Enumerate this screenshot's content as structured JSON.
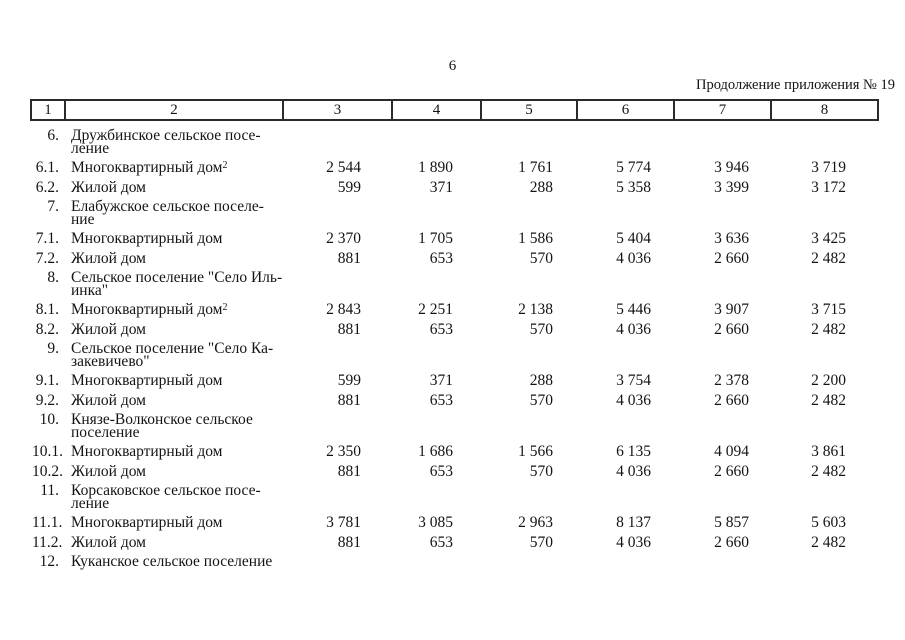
{
  "page": {
    "number": "6",
    "continuation_note": "Продолжение приложения № 19"
  },
  "table": {
    "header_cols": [
      "1",
      "2",
      "3",
      "4",
      "5",
      "6",
      "7",
      "8"
    ],
    "rows": [
      {
        "num": "6.",
        "label": "Дружбинское сельское посе-\nление",
        "values": []
      },
      {
        "num": "6.1.",
        "label": "Многоквартирный дом",
        "sup": "2",
        "values": [
          "2 544",
          "1 890",
          "1 761",
          "5 774",
          "3 946",
          "3 719"
        ]
      },
      {
        "num": "6.2.",
        "label": "Жилой дом",
        "values": [
          "599",
          "371",
          "288",
          "5 358",
          "3 399",
          "3 172"
        ]
      },
      {
        "num": "7.",
        "label": "Елабужское сельское поселе-\nние",
        "values": []
      },
      {
        "num": "7.1.",
        "label": "Многоквартирный дом",
        "values": [
          "2 370",
          "1 705",
          "1 586",
          "5 404",
          "3 636",
          "3 425"
        ]
      },
      {
        "num": "7.2.",
        "label": "Жилой дом",
        "values": [
          "881",
          "653",
          "570",
          "4 036",
          "2 660",
          "2 482"
        ]
      },
      {
        "num": "8.",
        "label": "Сельское поселение \"Село Иль-\nинка\"",
        "values": []
      },
      {
        "num": "8.1.",
        "label": "Многоквартирный дом",
        "sup": "2",
        "values": [
          "2 843",
          "2 251",
          "2 138",
          "5 446",
          "3 907",
          "3 715"
        ]
      },
      {
        "num": "8.2.",
        "label": "Жилой дом",
        "values": [
          "881",
          "653",
          "570",
          "4 036",
          "2 660",
          "2 482"
        ]
      },
      {
        "num": "9.",
        "label": "Сельское поселение \"Село Ка-\nзакевичево\"",
        "values": []
      },
      {
        "num": "9.1.",
        "label": "Многоквартирный дом",
        "values": [
          "599",
          "371",
          "288",
          "3 754",
          "2 378",
          "2 200"
        ]
      },
      {
        "num": "9.2.",
        "label": "Жилой дом",
        "values": [
          "881",
          "653",
          "570",
          "4 036",
          "2 660",
          "2 482"
        ]
      },
      {
        "num": "10.",
        "label": "Князе-Волконское сельское\nпоселение",
        "values": []
      },
      {
        "num": "10.1.",
        "label": "Многоквартирный дом",
        "values": [
          "2 350",
          "1 686",
          "1 566",
          "6 135",
          "4 094",
          "3 861"
        ]
      },
      {
        "num": "10.2.",
        "label": "Жилой дом",
        "values": [
          "881",
          "653",
          "570",
          "4 036",
          "2 660",
          "2 482"
        ]
      },
      {
        "num": "11.",
        "label": "Корсаковское сельское посе-\nление",
        "values": []
      },
      {
        "num": "11.1.",
        "label": "Многоквартирный дом",
        "values": [
          "3 781",
          "3 085",
          "2 963",
          "8 137",
          "5 857",
          "5 603"
        ]
      },
      {
        "num": "11.2.",
        "label": "Жилой дом",
        "values": [
          "881",
          "653",
          "570",
          "4 036",
          "2 660",
          "2 482"
        ]
      },
      {
        "num": "12.",
        "label": "Куканское сельское поселение",
        "values": []
      }
    ]
  }
}
